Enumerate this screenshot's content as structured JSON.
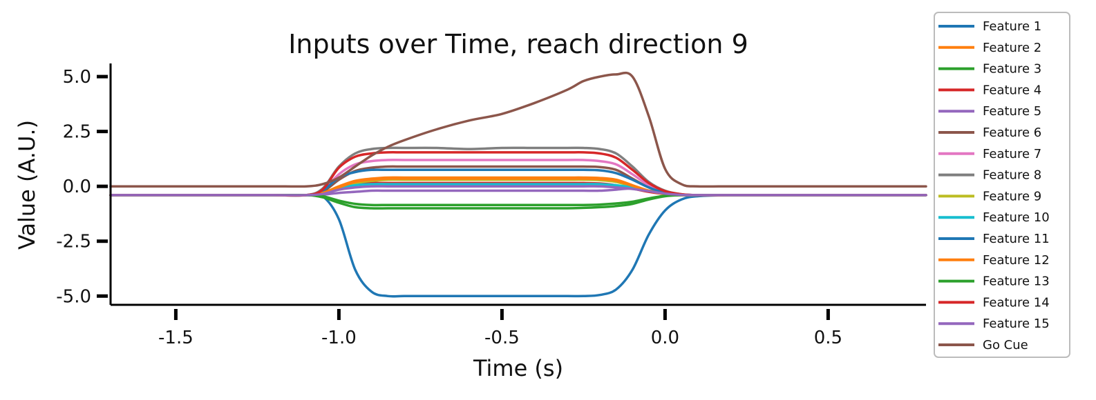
{
  "chart_data": {
    "type": "line",
    "title": "Inputs over Time, reach direction 9",
    "xlabel": "Time (s)",
    "ylabel": "Value (A.U.)",
    "xlim": [
      -1.7,
      0.8
    ],
    "ylim": [
      -5.4,
      5.6
    ],
    "xticks": [
      -1.5,
      -1.0,
      -0.5,
      0.0,
      0.5
    ],
    "xtick_labels": [
      "-1.5",
      "-1.0",
      "-0.5",
      "0.0",
      "0.5"
    ],
    "yticks": [
      -5.0,
      -2.5,
      0.0,
      2.5,
      5.0
    ],
    "ytick_labels": [
      "-5.0",
      "-2.5",
      "0.0",
      "2.5",
      "5.0"
    ],
    "grid": false,
    "legend_position": "outside-right",
    "x": [
      -1.7,
      -1.6,
      -1.5,
      -1.4,
      -1.3,
      -1.2,
      -1.1,
      -1.05,
      -1.0,
      -0.95,
      -0.9,
      -0.85,
      -0.8,
      -0.7,
      -0.6,
      -0.5,
      -0.4,
      -0.3,
      -0.25,
      -0.2,
      -0.15,
      -0.1,
      -0.05,
      0.0,
      0.05,
      0.1,
      0.2,
      0.3,
      0.4,
      0.5,
      0.6,
      0.7,
      0.8
    ],
    "series": [
      {
        "name": "Feature 1",
        "color": "#1f77b4",
        "values": [
          -0.4,
          -0.4,
          -0.4,
          -0.4,
          -0.4,
          -0.4,
          -0.4,
          -0.45,
          -1.5,
          -3.8,
          -4.8,
          -5.0,
          -5.0,
          -5.0,
          -5.0,
          -5.0,
          -5.0,
          -5.0,
          -5.0,
          -4.95,
          -4.7,
          -3.8,
          -2.2,
          -1.1,
          -0.6,
          -0.45,
          -0.4,
          -0.4,
          -0.4,
          -0.4,
          -0.4,
          -0.4,
          -0.4
        ]
      },
      {
        "name": "Feature 2",
        "color": "#ff7f0e",
        "values": [
          -0.4,
          -0.4,
          -0.4,
          -0.4,
          -0.4,
          -0.4,
          -0.4,
          -0.3,
          0.0,
          0.25,
          0.35,
          0.4,
          0.4,
          0.4,
          0.4,
          0.4,
          0.4,
          0.4,
          0.4,
          0.38,
          0.3,
          0.05,
          -0.2,
          -0.35,
          -0.4,
          -0.4,
          -0.4,
          -0.4,
          -0.4,
          -0.4,
          -0.4,
          -0.4,
          -0.4
        ]
      },
      {
        "name": "Feature 3",
        "color": "#2ca02c",
        "values": [
          -0.4,
          -0.4,
          -0.4,
          -0.4,
          -0.4,
          -0.4,
          -0.4,
          -0.5,
          -0.75,
          -0.95,
          -1.0,
          -1.0,
          -1.0,
          -1.0,
          -1.0,
          -1.0,
          -1.0,
          -1.0,
          -0.98,
          -0.95,
          -0.9,
          -0.8,
          -0.6,
          -0.45,
          -0.4,
          -0.4,
          -0.4,
          -0.4,
          -0.4,
          -0.4,
          -0.4,
          -0.4,
          -0.4
        ]
      },
      {
        "name": "Feature 4",
        "color": "#d62728",
        "values": [
          -0.4,
          -0.4,
          -0.4,
          -0.4,
          -0.4,
          -0.4,
          -0.4,
          -0.3,
          -0.05,
          0.1,
          0.15,
          0.15,
          0.15,
          0.15,
          0.15,
          0.15,
          0.15,
          0.15,
          0.15,
          0.13,
          0.05,
          -0.1,
          -0.25,
          -0.35,
          -0.4,
          -0.4,
          -0.4,
          -0.4,
          -0.4,
          -0.4,
          -0.4,
          -0.4,
          -0.4
        ]
      },
      {
        "name": "Feature 5",
        "color": "#9467bd",
        "values": [
          -0.4,
          -0.4,
          -0.4,
          -0.4,
          -0.4,
          -0.4,
          -0.4,
          -0.38,
          -0.3,
          -0.25,
          -0.2,
          -0.2,
          -0.2,
          -0.2,
          -0.2,
          -0.2,
          -0.2,
          -0.2,
          -0.2,
          -0.2,
          -0.15,
          -0.1,
          -0.2,
          -0.32,
          -0.38,
          -0.4,
          -0.4,
          -0.4,
          -0.4,
          -0.4,
          -0.4,
          -0.4,
          -0.4
        ]
      },
      {
        "name": "Feature 6",
        "color": "#8c564b",
        "values": [
          -0.4,
          -0.4,
          -0.4,
          -0.4,
          -0.4,
          -0.4,
          -0.4,
          -0.25,
          0.3,
          0.7,
          0.85,
          0.9,
          0.9,
          0.9,
          0.9,
          0.9,
          0.9,
          0.9,
          0.9,
          0.88,
          0.75,
          0.35,
          -0.05,
          -0.3,
          -0.38,
          -0.4,
          -0.4,
          -0.4,
          -0.4,
          -0.4,
          -0.4,
          -0.4,
          -0.4
        ]
      },
      {
        "name": "Feature 7",
        "color": "#e377c2",
        "values": [
          -0.4,
          -0.4,
          -0.4,
          -0.4,
          -0.4,
          -0.4,
          -0.4,
          -0.2,
          0.55,
          1.0,
          1.15,
          1.2,
          1.2,
          1.2,
          1.2,
          1.2,
          1.2,
          1.2,
          1.2,
          1.15,
          1.0,
          0.55,
          0.05,
          -0.25,
          -0.38,
          -0.4,
          -0.4,
          -0.4,
          -0.4,
          -0.4,
          -0.4,
          -0.4,
          -0.4
        ]
      },
      {
        "name": "Feature 8",
        "color": "#7f7f7f",
        "values": [
          -0.4,
          -0.4,
          -0.4,
          -0.4,
          -0.4,
          -0.4,
          -0.4,
          -0.1,
          0.9,
          1.5,
          1.7,
          1.75,
          1.75,
          1.75,
          1.7,
          1.75,
          1.75,
          1.75,
          1.75,
          1.7,
          1.5,
          0.9,
          0.2,
          -0.2,
          -0.36,
          -0.4,
          -0.4,
          -0.4,
          -0.4,
          -0.4,
          -0.4,
          -0.4,
          -0.4
        ]
      },
      {
        "name": "Feature 9",
        "color": "#bcbd22",
        "values": [
          -0.4,
          -0.4,
          -0.4,
          -0.4,
          -0.4,
          -0.4,
          -0.4,
          -0.3,
          -0.05,
          0.15,
          0.25,
          0.3,
          0.3,
          0.3,
          0.3,
          0.3,
          0.3,
          0.3,
          0.3,
          0.28,
          0.2,
          0.0,
          -0.2,
          -0.34,
          -0.4,
          -0.4,
          -0.4,
          -0.4,
          -0.4,
          -0.4,
          -0.4,
          -0.4,
          -0.4
        ]
      },
      {
        "name": "Feature 10",
        "color": "#17becf",
        "values": [
          -0.4,
          -0.4,
          -0.4,
          -0.4,
          -0.4,
          -0.4,
          -0.4,
          -0.32,
          -0.1,
          0.05,
          0.1,
          0.1,
          0.1,
          0.1,
          0.1,
          0.1,
          0.1,
          0.1,
          0.1,
          0.1,
          0.05,
          -0.05,
          -0.2,
          -0.34,
          -0.4,
          -0.4,
          -0.4,
          -0.4,
          -0.4,
          -0.4,
          -0.4,
          -0.4,
          -0.4
        ]
      },
      {
        "name": "Feature 11",
        "color": "#1f77b4",
        "values": [
          -0.4,
          -0.4,
          -0.4,
          -0.4,
          -0.4,
          -0.4,
          -0.4,
          -0.2,
          0.4,
          0.65,
          0.75,
          0.75,
          0.75,
          0.75,
          0.75,
          0.75,
          0.75,
          0.75,
          0.75,
          0.73,
          0.6,
          0.3,
          -0.05,
          -0.3,
          -0.38,
          -0.4,
          -0.4,
          -0.4,
          -0.4,
          -0.4,
          -0.4,
          -0.4,
          -0.4
        ]
      },
      {
        "name": "Feature 12",
        "color": "#ff7f0e",
        "values": [
          -0.4,
          -0.4,
          -0.4,
          -0.4,
          -0.4,
          -0.4,
          -0.4,
          -0.3,
          -0.05,
          0.2,
          0.3,
          0.35,
          0.35,
          0.35,
          0.35,
          0.35,
          0.35,
          0.35,
          0.35,
          0.33,
          0.25,
          0.02,
          -0.2,
          -0.35,
          -0.4,
          -0.4,
          -0.4,
          -0.4,
          -0.4,
          -0.4,
          -0.4,
          -0.4,
          -0.4
        ]
      },
      {
        "name": "Feature 13",
        "color": "#2ca02c",
        "values": [
          -0.4,
          -0.4,
          -0.4,
          -0.4,
          -0.4,
          -0.4,
          -0.4,
          -0.45,
          -0.65,
          -0.8,
          -0.85,
          -0.85,
          -0.85,
          -0.85,
          -0.85,
          -0.85,
          -0.85,
          -0.85,
          -0.85,
          -0.83,
          -0.78,
          -0.7,
          -0.55,
          -0.43,
          -0.4,
          -0.4,
          -0.4,
          -0.4,
          -0.4,
          -0.4,
          -0.4,
          -0.4,
          -0.4
        ]
      },
      {
        "name": "Feature 14",
        "color": "#d62728",
        "values": [
          -0.4,
          -0.4,
          -0.4,
          -0.4,
          -0.4,
          -0.4,
          -0.4,
          -0.15,
          0.85,
          1.35,
          1.5,
          1.55,
          1.55,
          1.55,
          1.55,
          1.55,
          1.55,
          1.55,
          1.55,
          1.5,
          1.3,
          0.75,
          0.15,
          -0.22,
          -0.36,
          -0.4,
          -0.4,
          -0.4,
          -0.4,
          -0.4,
          -0.4,
          -0.4,
          -0.4
        ]
      },
      {
        "name": "Feature 15",
        "color": "#9467bd",
        "values": [
          -0.4,
          -0.4,
          -0.4,
          -0.4,
          -0.4,
          -0.4,
          -0.4,
          -0.35,
          -0.15,
          -0.05,
          0.0,
          0.0,
          0.0,
          0.0,
          0.0,
          0.0,
          0.0,
          0.0,
          0.0,
          0.0,
          -0.05,
          -0.12,
          -0.22,
          -0.33,
          -0.39,
          -0.4,
          -0.4,
          -0.4,
          -0.4,
          -0.4,
          -0.4,
          -0.4,
          -0.4
        ]
      },
      {
        "name": "Go Cue",
        "color": "#8c564b",
        "values": [
          0.0,
          0.0,
          0.0,
          0.0,
          0.0,
          0.0,
          0.0,
          0.1,
          0.4,
          0.9,
          1.4,
          1.8,
          2.1,
          2.6,
          3.0,
          3.3,
          3.8,
          4.4,
          4.8,
          5.0,
          5.1,
          5.0,
          3.2,
          0.8,
          0.1,
          0.0,
          0.0,
          0.0,
          0.0,
          0.0,
          0.0,
          0.0,
          0.0
        ]
      }
    ]
  }
}
